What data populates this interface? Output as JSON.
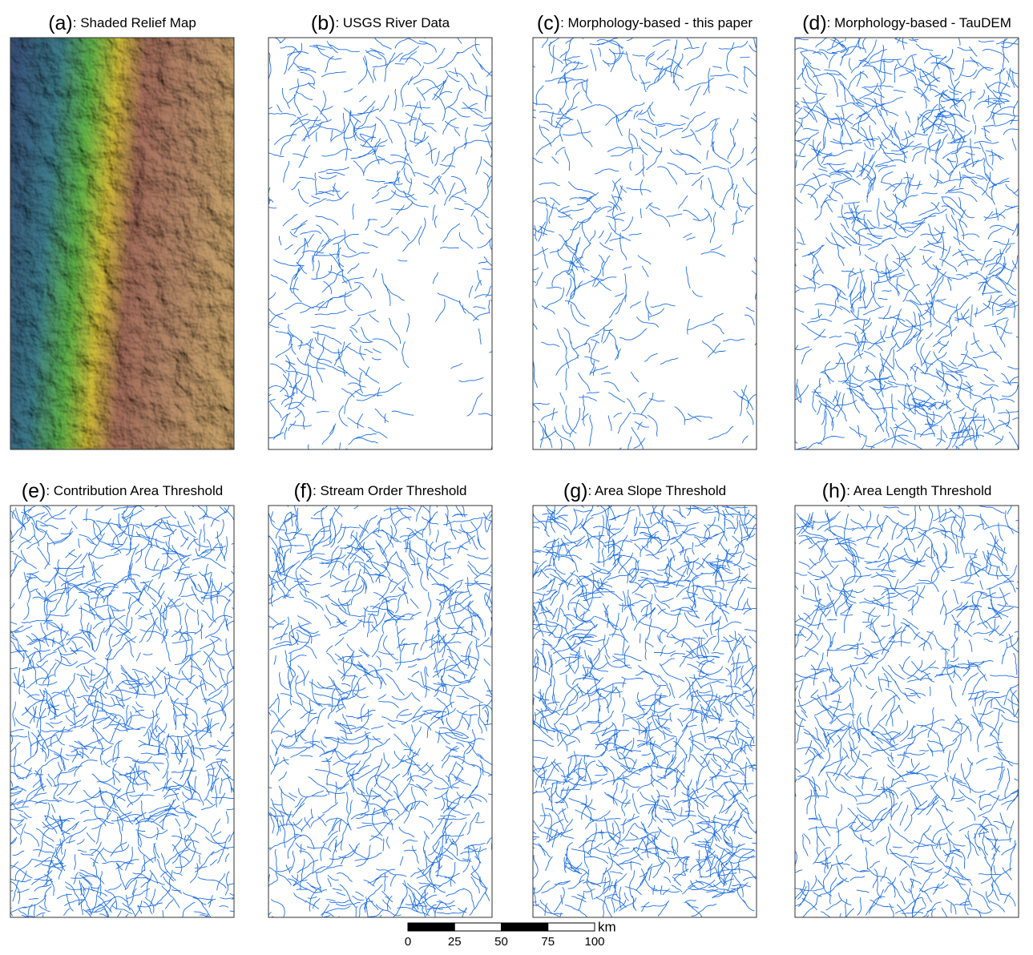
{
  "panels": [
    {
      "letter": "(a)",
      "title": ": Shaded Relief Map"
    },
    {
      "letter": "(b)",
      "title": ": USGS River Data"
    },
    {
      "letter": "(c)",
      "title": ": Morphology-based - this paper"
    },
    {
      "letter": "(d)",
      "title": ": Morphology-based - TauDEM"
    },
    {
      "letter": "(e)",
      "title": ": Contribution Area Threshold"
    },
    {
      "letter": "(f)",
      "title": ": Stream Order Threshold"
    },
    {
      "letter": "(g)",
      "title": ": Area Slope Threshold"
    },
    {
      "letter": "(h)",
      "title": ": Area Length Threshold"
    }
  ],
  "scale_bar": {
    "ticks": [
      0,
      25,
      50,
      75,
      100
    ],
    "unit": "km"
  }
}
